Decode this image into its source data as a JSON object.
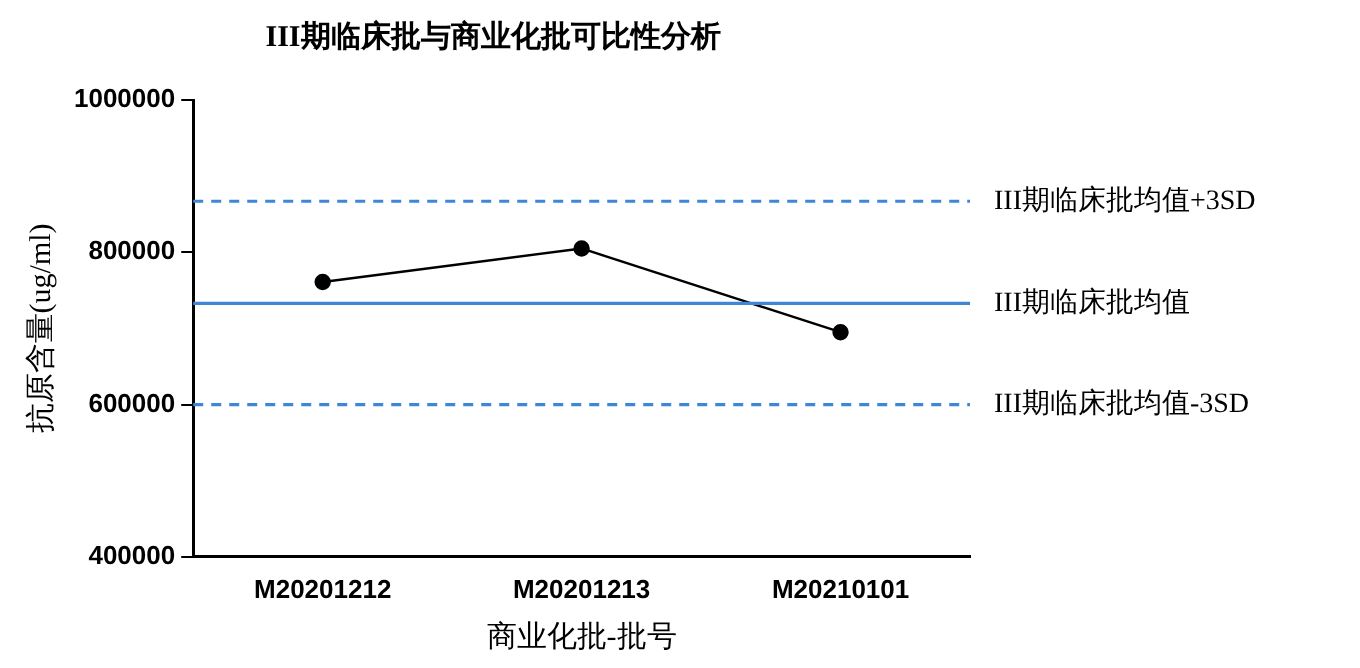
{
  "chart_data": {
    "type": "line",
    "title": "III期临床批与商业化批可比性分析",
    "xlabel": "商业化批-批号",
    "ylabel": "抗原含量(ug/ml)",
    "categories": [
      "M20201212",
      "M20201213",
      "M20210101"
    ],
    "series": [
      {
        "color": "#000000",
        "values": [
          761000,
          805000,
          695000
        ]
      }
    ],
    "ylim": [
      400000,
      1000000
    ],
    "yticks": [
      400000,
      600000,
      800000,
      1000000
    ],
    "grid": false,
    "legend": false,
    "marker": "circle",
    "line_style": "solid",
    "ref_lines": [
      {
        "axis": "y",
        "value": 867000,
        "label": "III期临床批均值+3SD",
        "color": "#3f86d6",
        "line_style": "dashed"
      },
      {
        "axis": "y",
        "value": 733000,
        "label": "III期临床批均值",
        "color": "#3f86d6",
        "line_style": "solid"
      },
      {
        "axis": "y",
        "value": 600000,
        "label": "III期临床批均值-3SD",
        "color": "#3f86d6",
        "line_style": "dashed"
      }
    ]
  }
}
